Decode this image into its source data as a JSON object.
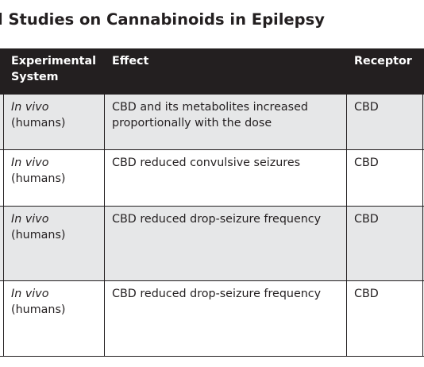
{
  "title": "l Studies on Cannabinoids in Epilepsy",
  "columns": {
    "system_line1": "Experimental",
    "system_line2": "System",
    "effect": "Effect",
    "receptor": "Receptor"
  },
  "rows": [
    {
      "system_mode": "In vivo",
      "system_subject": "(humans)",
      "effect_line1": "CBD and its metabolites increased",
      "effect_line2": "proportionally with the dose",
      "receptor": "CBD"
    },
    {
      "system_mode": "In vivo",
      "system_subject": "(humans)",
      "effect_line1": "CBD reduced convulsive seizures",
      "effect_line2": "",
      "receptor": "CBD"
    },
    {
      "system_mode": "In vivo",
      "system_subject": "(humans)",
      "effect_line1": "CBD reduced drop-seizure frequency",
      "effect_line2": "",
      "receptor": "CBD"
    },
    {
      "system_mode": "In vivo",
      "system_subject": "(humans)",
      "effect_line1": "CBD reduced drop-seizure frequency",
      "effect_line2": "",
      "receptor": "CBD"
    }
  ],
  "colors": {
    "header_background": "#231f20",
    "header_text": "#ffffff",
    "shaded_row": "#e6e7e8",
    "border": "#231f20"
  }
}
